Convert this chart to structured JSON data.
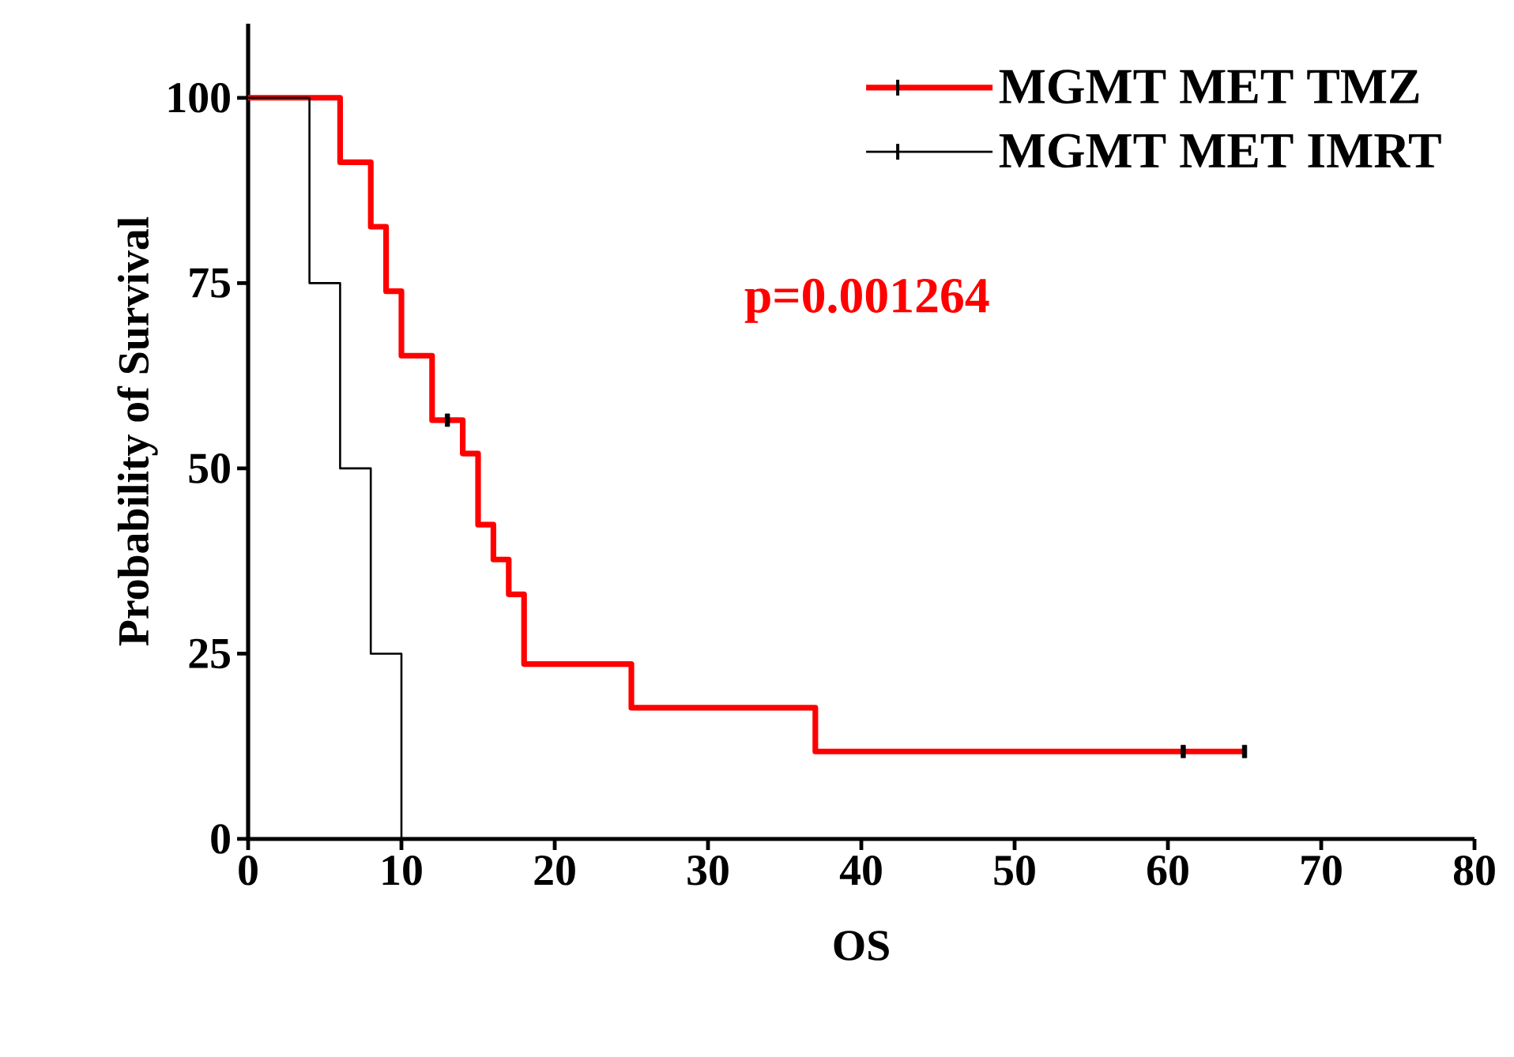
{
  "chart_data": {
    "type": "step",
    "xlabel": "OS",
    "ylabel": "Probability of Survival",
    "xlim": [
      0,
      80
    ],
    "ylim": [
      0,
      110
    ],
    "xticks": [
      0,
      10,
      20,
      30,
      40,
      50,
      60,
      70,
      80
    ],
    "yticks": [
      0,
      25,
      50,
      75,
      100
    ],
    "legend": "top right",
    "annotations": [
      "p=0.001264"
    ],
    "series": [
      {
        "name": "MGMT MET TMZ",
        "color": "#ff0000",
        "x": [
          0,
          6,
          8,
          9,
          10,
          12,
          14,
          15,
          16,
          17,
          18,
          25,
          37,
          65
        ],
        "values": [
          100,
          91.3,
          82.6,
          73.9,
          65.2,
          56.5,
          52,
          42.4,
          37.7,
          33,
          23.6,
          17.7,
          11.8,
          11.8
        ]
      },
      {
        "name": "MGMT MET IMRT",
        "color": "#000000",
        "x": [
          0,
          4,
          6,
          8,
          10
        ],
        "values": [
          100,
          75,
          50,
          25,
          0
        ]
      },
      {
        "type": "scatter",
        "color": "#000000",
        "x": [
          13,
          61,
          65
        ],
        "values": [
          56.5,
          11.8,
          11.8
        ]
      }
    ]
  }
}
